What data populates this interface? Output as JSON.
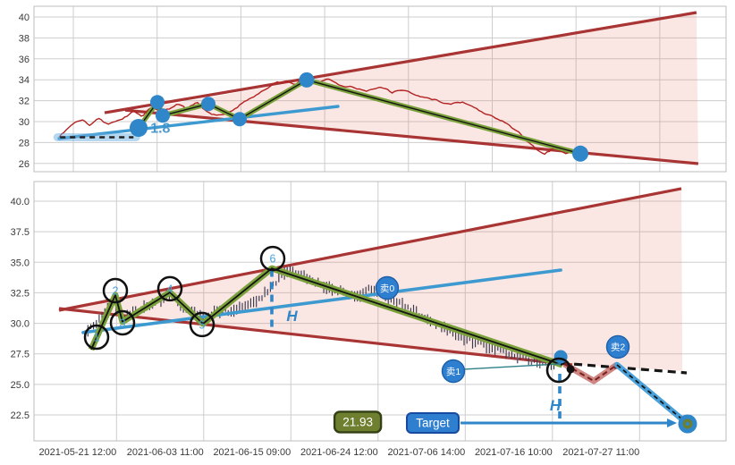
{
  "figure": {
    "background": "#ffffff"
  },
  "colors": {
    "price_line": "#b22222",
    "wedge_line": "#a93434",
    "wedge_fill": "rgba(225,118,96,0.18)",
    "zigzag": "#7ba23a",
    "zigzag_core": "#141414",
    "trendline": "#3d9ad1",
    "marker_dot": "#2f86c8",
    "candle_dark": "#3a3a4e",
    "candle_light": "#5c5c76",
    "annotation_blue": "#2f86c8",
    "sell_fill": "#2f7fd0",
    "sell_border": "#1d5fa8",
    "target_box_fill": "#2f7fd0",
    "target_box_border": "#17499e",
    "price_box_fill": "#6e8030",
    "price_box_border": "#333f14",
    "black_dashed": "#161616",
    "pullback": "rgba(175,55,50,0.6)",
    "pullback_dash": "#7a1f1f",
    "projection": "#4aa0d8",
    "leader_teal": "#2e7f85",
    "grid": "#cdcdcd",
    "axis_text": "#3a3a3a"
  },
  "chart_data": [
    {
      "panel": "top",
      "type": "line",
      "title": "",
      "xlabel": "",
      "ylabel": "",
      "grid": true,
      "legend": "none",
      "y_tick_labels": [
        "40",
        "38",
        "36",
        "34",
        "32",
        "30",
        "28",
        "26"
      ],
      "y_tick_values": [
        40,
        38,
        36,
        34,
        32,
        30,
        28,
        26
      ],
      "ylim": [
        25.2,
        41.0
      ],
      "series": {
        "price_line_anchors": [
          [
            -0.17,
            28.4
          ],
          [
            -0.08,
            29.3
          ],
          [
            0.0,
            29.8
          ],
          [
            0.1,
            30.2
          ],
          [
            0.2,
            29.6
          ],
          [
            0.3,
            30.3
          ],
          [
            0.4,
            29.8
          ],
          [
            0.5,
            29.9
          ],
          [
            0.62,
            30.4
          ],
          [
            0.72,
            31.1
          ],
          [
            0.82,
            30.6
          ],
          [
            0.93,
            31.3
          ],
          [
            1.03,
            30.9
          ],
          [
            1.13,
            31.2
          ],
          [
            1.24,
            31.7
          ],
          [
            1.35,
            31.2
          ],
          [
            1.47,
            31.8
          ],
          [
            1.58,
            31.1
          ],
          [
            1.7,
            30.6
          ],
          [
            1.83,
            30.9
          ],
          [
            1.97,
            31.5
          ],
          [
            2.1,
            32.2
          ],
          [
            2.24,
            32.9
          ],
          [
            2.38,
            33.5
          ],
          [
            2.52,
            33.9
          ],
          [
            2.64,
            33.6
          ],
          [
            2.78,
            34.2
          ],
          [
            2.92,
            33.7
          ],
          [
            3.06,
            34.1
          ],
          [
            3.2,
            33.5
          ],
          [
            3.35,
            33.3
          ],
          [
            3.5,
            32.9
          ],
          [
            3.65,
            33.2
          ],
          [
            3.8,
            32.8
          ],
          [
            3.95,
            33.0
          ],
          [
            4.12,
            32.5
          ],
          [
            4.3,
            32.1
          ],
          [
            4.48,
            31.7
          ],
          [
            4.66,
            31.9
          ],
          [
            4.84,
            31.1
          ],
          [
            5.02,
            30.5
          ],
          [
            5.2,
            29.7
          ],
          [
            5.35,
            28.7
          ],
          [
            5.5,
            27.5
          ],
          [
            5.62,
            27.0
          ],
          [
            5.75,
            27.5
          ],
          [
            5.88,
            27.0
          ],
          [
            6.0,
            27.3
          ],
          [
            6.05,
            26.9
          ]
        ],
        "zigzag_points": [
          [
            0.779,
            29.4
          ],
          [
            1.003,
            31.86
          ],
          [
            1.067,
            30.58
          ],
          [
            1.612,
            31.69
          ],
          [
            1.985,
            30.24
          ],
          [
            2.786,
            33.98
          ],
          [
            6.051,
            26.94
          ]
        ],
        "marker_radii": [
          10,
          8,
          8,
          8,
          8,
          8.5,
          9
        ],
        "trendline": [
          [
            -0.171,
            28.38
          ],
          [
            3.159,
            31.45
          ]
        ],
        "entry_level": {
          "value": 28.5,
          "from_u": -0.19,
          "to_u": 0.75
        },
        "wedge_upper": [
          [
            0.373,
            30.85
          ],
          [
            7.438,
            40.43
          ]
        ],
        "wedge_lower": [
          [
            0.619,
            31.09
          ],
          [
            7.459,
            25.98
          ]
        ],
        "wedge_fill_polygon": [
          [
            0.726,
            31.07
          ],
          [
            7.438,
            40.43
          ],
          [
            7.459,
            25.98
          ]
        ]
      },
      "annotations": {
        "ratio_label": {
          "text": "1.8",
          "u": 0.92,
          "v": 28.95
        }
      }
    },
    {
      "panel": "bottom",
      "type": "candlestick+zigzag",
      "title": "",
      "xlabel": "",
      "ylabel": "",
      "grid": true,
      "legend": "none",
      "x_tick_labels": [
        "2021-05-21 12:00",
        "2021-06-03 11:00",
        "2021-06-15 09:00",
        "2021-06-24 12:00",
        "2021-07-06 14:00",
        "2021-07-16 10:00",
        "2021-07-27 11:00"
      ],
      "y_tick_labels": [
        "40.0",
        "37.5",
        "35.0",
        "32.5",
        "30.0",
        "27.5",
        "25.0",
        "22.5"
      ],
      "y_tick_values": [
        40,
        37.5,
        35,
        32.5,
        30,
        27.5,
        25,
        22.5
      ],
      "ylim": [
        20.5,
        41.6
      ],
      "series": {
        "candle_anchors": [
          [
            -0.36,
            29.2
          ],
          [
            -0.25,
            29.9
          ],
          [
            -0.15,
            30.7
          ],
          [
            -0.05,
            31.9
          ],
          [
            0.02,
            31.2
          ],
          [
            0.07,
            30.3
          ],
          [
            0.15,
            30.8
          ],
          [
            0.25,
            31.1
          ],
          [
            0.35,
            31.3
          ],
          [
            0.45,
            31.6
          ],
          [
            0.55,
            32.0
          ],
          [
            0.61,
            32.3
          ],
          [
            0.7,
            31.8
          ],
          [
            0.8,
            31.2
          ],
          [
            0.9,
            30.9
          ],
          [
            1.0,
            30.4
          ],
          [
            1.1,
            30.8
          ],
          [
            1.2,
            31.1
          ],
          [
            1.3,
            30.9
          ],
          [
            1.4,
            31.2
          ],
          [
            1.5,
            31.6
          ],
          [
            1.6,
            31.9
          ],
          [
            1.7,
            32.4
          ],
          [
            1.8,
            33.2
          ],
          [
            1.9,
            34.0
          ],
          [
            2.0,
            34.3
          ],
          [
            2.1,
            34.0
          ],
          [
            2.2,
            33.6
          ],
          [
            2.3,
            33.2
          ],
          [
            2.4,
            33.0
          ],
          [
            2.5,
            32.8
          ],
          [
            2.6,
            32.5
          ],
          [
            2.7,
            32.2
          ],
          [
            2.8,
            32.4
          ],
          [
            2.9,
            32.9
          ],
          [
            3.0,
            32.6
          ],
          [
            3.1,
            32.2
          ],
          [
            3.2,
            31.8
          ],
          [
            3.3,
            31.4
          ],
          [
            3.45,
            30.8
          ],
          [
            3.6,
            30.2
          ],
          [
            3.75,
            29.6
          ],
          [
            3.9,
            29.1
          ],
          [
            4.05,
            28.6
          ],
          [
            4.2,
            28.3
          ],
          [
            4.35,
            28.0
          ],
          [
            4.5,
            27.6
          ],
          [
            4.65,
            27.2
          ],
          [
            4.8,
            26.9
          ],
          [
            4.95,
            26.7
          ],
          [
            5.02,
            26.6
          ]
        ],
        "zigzag_points": [
          [
            -0.29,
            27.85
          ],
          [
            -0.013,
            32.31
          ],
          [
            0.069,
            30.12
          ],
          [
            0.612,
            32.53
          ],
          [
            0.992,
            29.97
          ],
          [
            1.782,
            34.5
          ],
          [
            5.115,
            26.6
          ]
        ],
        "trendline": [
          [
            -0.383,
            29.24
          ],
          [
            5.095,
            34.36
          ]
        ],
        "wedge_upper": [
          [
            -0.659,
            31.07
          ],
          [
            6.479,
            41.03
          ]
        ],
        "wedge_lower": [
          [
            -0.659,
            31.21
          ],
          [
            5.228,
            26.6
          ]
        ],
        "wedge_fill_polygon": [
          [
            -0.515,
            31.15
          ],
          [
            6.479,
            41.03
          ],
          [
            6.49,
            26.1
          ],
          [
            5.115,
            26.65
          ]
        ],
        "breakdown_dashed": [
          [
            5.095,
            26.75
          ],
          [
            6.541,
            25.94
          ]
        ],
        "pullback_zigzag": [
          [
            5.136,
            26.67
          ],
          [
            5.474,
            25.28
          ],
          [
            5.741,
            26.6
          ]
        ],
        "projection_line": [
          [
            5.741,
            26.6
          ],
          [
            6.551,
            21.77
          ]
        ],
        "target_point": [
          6.551,
          21.77
        ],
        "end_marker": [
          5.095,
          27.26
        ],
        "black_dot": [
          5.208,
          26.24
        ],
        "breakdown_circle": {
          "u": 5.074,
          "v": 26.16,
          "r": 13
        }
      },
      "numbered_circles": [
        {
          "label": "1",
          "u": -0.229,
          "v": 28.87
        },
        {
          "label": "2",
          "u": -0.013,
          "v": 32.68
        },
        {
          "label": "3",
          "u": 0.069,
          "v": 30.04
        },
        {
          "label": "4",
          "u": 0.612,
          "v": 32.83
        },
        {
          "label": "5",
          "u": 0.982,
          "v": 29.9
        },
        {
          "label": "6",
          "u": 1.792,
          "v": 35.31
        }
      ],
      "sell_markers": [
        {
          "text": "卖0",
          "u": 3.105,
          "v": 32.9
        },
        {
          "text": "卖1",
          "u": 3.864,
          "v": 26.09,
          "leader_to": [
            5.084,
            26.68
          ]
        },
        {
          "text": "卖2",
          "u": 5.751,
          "v": 28.07
        }
      ],
      "h_measures": [
        {
          "label": "H",
          "line_u": 1.782,
          "from_v": 34.4,
          "to_v": 29.55,
          "label_u": 1.95,
          "label_v": 30.2
        },
        {
          "label": "H",
          "line_u": 5.084,
          "from_v": 25.87,
          "to_v": 22.21,
          "label_u": 4.97,
          "label_v": 22.85,
          "arrow_v": 26.5
        }
      ],
      "target_label": {
        "text": "Target",
        "u": 3.628,
        "v": 21.84,
        "arrow_to_u": 6.428
      },
      "price_target_box": {
        "text": "21.93",
        "u": 2.767,
        "v": 21.92
      }
    }
  ]
}
